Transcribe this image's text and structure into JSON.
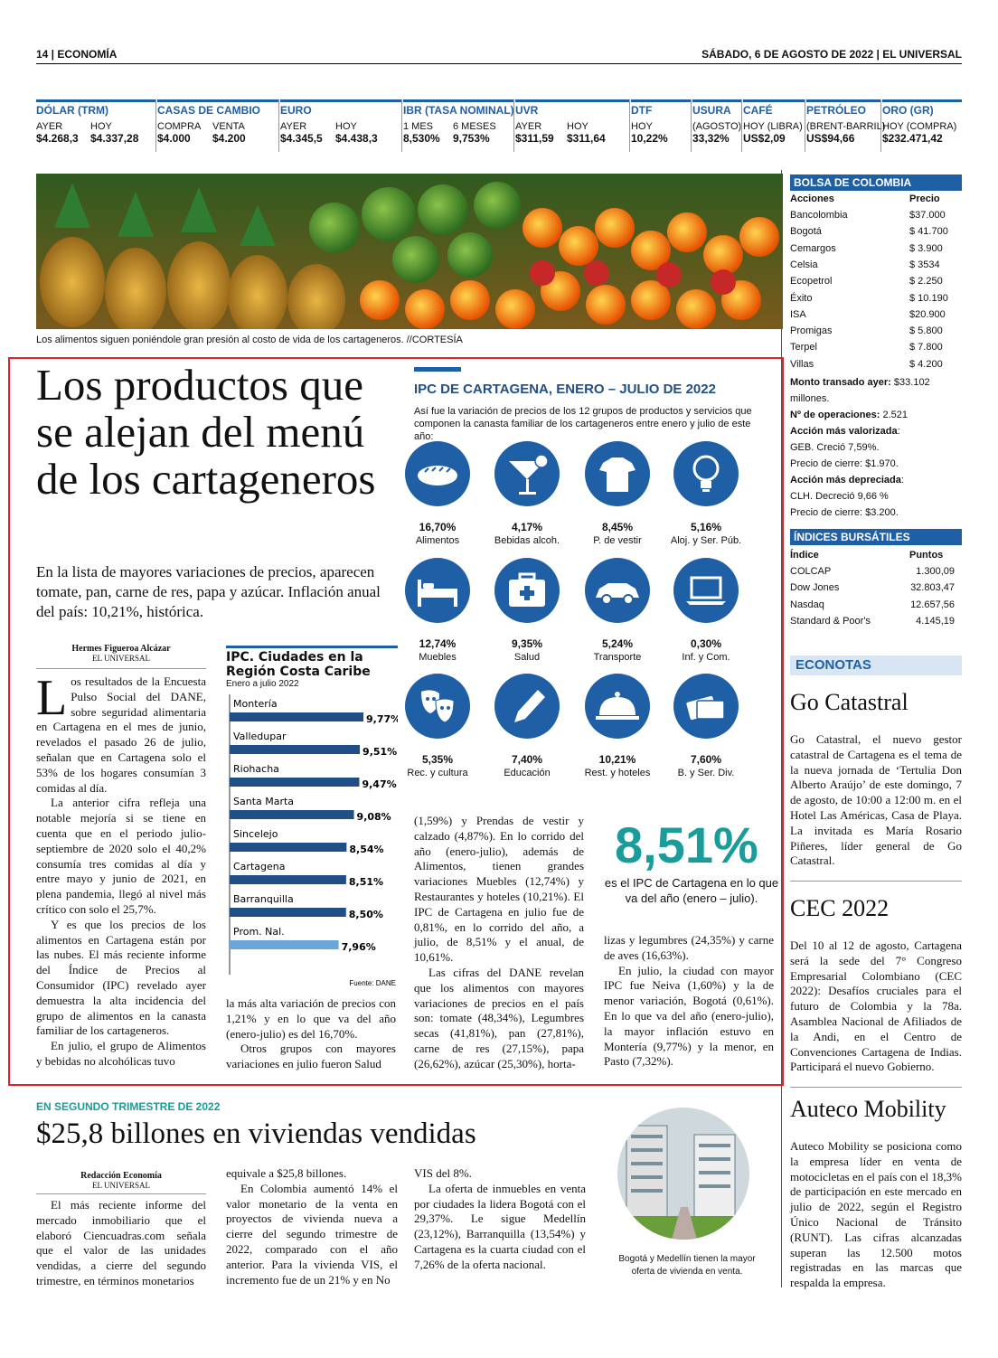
{
  "header": {
    "section": "14 | ECONOMÍA",
    "date": "SÁBADO, 6 DE AGOSTO DE 2022 | EL UNIVERSAL"
  },
  "markets": [
    {
      "title": "DÓLAR (TRM)",
      "subs": [
        "AYER",
        "HOY"
      ],
      "vals": [
        "$4.268,3",
        "$4.337,28"
      ]
    },
    {
      "title": "CASAS DE CAMBIO",
      "subs": [
        "COMPRA",
        "VENTA"
      ],
      "vals": [
        "$4.000",
        "$4.200"
      ]
    },
    {
      "title": "EURO",
      "subs": [
        "AYER",
        "HOY"
      ],
      "vals": [
        "$4.345,5",
        "$4.438,3"
      ]
    },
    {
      "title": "IBR (TASA NOMINAL)",
      "subs": [
        "1 MES",
        "6 MESES"
      ],
      "vals": [
        "8,530%",
        "9,753%"
      ]
    },
    {
      "title": "UVR",
      "subs": [
        "AYER",
        "HOY"
      ],
      "vals": [
        "$311,59",
        "$311,64"
      ]
    },
    {
      "title": "DTF",
      "subs": [
        "HOY"
      ],
      "vals": [
        "10,22%"
      ]
    },
    {
      "title": "USURA",
      "subs": [
        "(AGOSTO)"
      ],
      "vals": [
        "33,32%"
      ]
    },
    {
      "title": "CAFÉ",
      "subs": [
        "HOY (LIBRA)"
      ],
      "vals": [
        "US$2,09"
      ]
    },
    {
      "title": "PETRÓLEO",
      "subs": [
        "(BRENT-BARRIL)"
      ],
      "vals": [
        "US$94,66"
      ]
    },
    {
      "title": "ORO (GR)",
      "subs": [
        "HOY (COMPRA)"
      ],
      "vals": [
        "$232.471,42"
      ]
    }
  ],
  "photo_caption": "Los alimentos siguen poniéndole gran presión al costo de vida de los cartageneros. //CORTESÍA",
  "article": {
    "headline": "Los productos que se alejan del menú de los cartageneros",
    "deck": "En la lista de mayores variaciones de precios, aparecen tomate, pan, carne de res, papa y azúcar. Inflación anual del país: 10,21%, histórica.",
    "author": "Hermes Figueroa Alcázar",
    "outlet": "EL UNIVERSAL",
    "dropcap": "L",
    "col1": [
      "os resultados de la Encuesta Pulso Social del DANE, sobre seguridad alimentaria en Cartagena en el mes de junio, revelados el pasado 26 de julio, señalan que en Cartagena solo el 53% de los hogares consumían 3 comidas al día.",
      "La anterior cifra refleja una notable mejoría si se tiene en cuenta que en el periodo julio-septiembre de 2020 solo el 40,2% consumía tres comidas al día y entre mayo y junio de 2021, en plena pandemia, llegó al nivel más crítico con solo el 25,7%.",
      "Y es que los precios de los alimentos en Cartagena están por las nubes. El más reciente informe del Índice de Precios al Consumidor (IPC) revelado ayer demuestra la alta incidencia del grupo de alimentos en la canasta familiar de los cartageneros.",
      "En julio, el grupo de Alimentos y bebidas no alcohólicas tuvo"
    ],
    "col2": [
      "la más alta variación de precios con 1,21% y en lo que va del año (enero-julio) es del 16,70%.",
      "Otros grupos con mayores variaciones en julio fueron Salud"
    ],
    "col3": [
      "(1,59%) y Prendas de vestir y calzado (4,87%). En lo corrido del año (enero-julio), además de Alimentos, tienen grandes variaciones Muebles (12,74%) y Restaurantes y hoteles (10,21%). El IPC de Cartagena en julio fue de 0,81%, en lo corrido del año, a julio, de 8,51% y el anual, de 10,61%.",
      "Las cifras del DANE revelan que los alimentos con mayores variaciones de precios en el país son: tomate (48,34%), Legumbres secas (41,81%), pan (27,81%), carne de res (27,15%), papa (26,62%), azúcar (25,30%), horta-"
    ],
    "col4": [
      "lizas y legumbres (24,35%) y carne de aves (16,63%).",
      "En julio, la ciudad con mayor IPC fue Neiva (1,60%) y la de menor variación, Bogotá (0,61%). En lo que va del año (enero-julio), la mayor inflación estuvo en Montería (9,77%) y la menor, en Pasto (7,32%)."
    ]
  },
  "chart_data": {
    "type": "bar",
    "title": "IPC. Ciudades en la Región Costa Caribe",
    "subtitle": "Enero a julio 2022",
    "source": "Fuente: DANE",
    "categories": [
      "Montería",
      "Valledupar",
      "Riohacha",
      "Santa Marta",
      "Sincelejo",
      "Cartagena",
      "Barranquilla",
      "Prom. Nal."
    ],
    "values": [
      9.77,
      9.51,
      9.47,
      9.08,
      8.54,
      8.51,
      8.5,
      7.96
    ],
    "labels": [
      "9,77%",
      "9,51%",
      "9,47%",
      "9,08%",
      "8,54%",
      "8,51%",
      "8,50%",
      "7,96%"
    ],
    "colors": [
      "#1f4f86",
      "#1f4f86",
      "#1f4f86",
      "#1f4f86",
      "#1f4f86",
      "#1f4f86",
      "#1f4f86",
      "#6aa6da"
    ]
  },
  "ipc": {
    "title": "IPC DE CARTAGENA, ENERO – JULIO DE 2022",
    "subtitle": "Así fue la variación de precios de los 12 grupos de productos y servicios que componen la canasta familiar de los cartageneros entre enero y julio de este año:",
    "items": [
      {
        "icon": "bread-icon",
        "value": "16,70%",
        "label": "Alimentos"
      },
      {
        "icon": "cocktail-icon",
        "value": "4,17%",
        "label": "Bebidas alcoh."
      },
      {
        "icon": "shirt-icon",
        "value": "8,45%",
        "label": "P. de vestir"
      },
      {
        "icon": "lightbulb-icon",
        "value": "5,16%",
        "label": "Aloj. y Ser. Púb."
      },
      {
        "icon": "bed-icon",
        "value": "12,74%",
        "label": "Muebles"
      },
      {
        "icon": "medkit-icon",
        "value": "9,35%",
        "label": "Salud"
      },
      {
        "icon": "car-icon",
        "value": "5,24%",
        "label": "Transporte"
      },
      {
        "icon": "laptop-icon",
        "value": "0,30%",
        "label": "Inf. y Com."
      },
      {
        "icon": "masks-icon",
        "value": "5,35%",
        "label": "Rec. y cultura"
      },
      {
        "icon": "pencil-icon",
        "value": "7,40%",
        "label": "Educación"
      },
      {
        "icon": "cloche-icon",
        "value": "10,21%",
        "label": "Rest. y hoteles"
      },
      {
        "icon": "cards-icon",
        "value": "7,60%",
        "label": "B. y Ser. Div."
      }
    ],
    "big_value": "8,51%",
    "big_text": "es el IPC de Cartagena en lo que va del año (enero – julio)."
  },
  "bolsa": {
    "title": "BOLSA DE COLOMBIA",
    "h1": "Acciones",
    "h2": "Precio",
    "rows": [
      [
        "Bancolombia",
        "$37.000"
      ],
      [
        "Bogotá",
        "$ 41.700"
      ],
      [
        "Cemargos",
        "$   3.900"
      ],
      [
        "Celsia",
        "$   3534"
      ],
      [
        "Ecopetrol",
        "$   2.250"
      ],
      [
        "Éxito",
        "$   10.190"
      ],
      [
        "ISA",
        "$20.900"
      ],
      [
        "Promigas",
        "$   5.800"
      ],
      [
        "Terpel",
        "$   7.800"
      ],
      [
        "Villas",
        "$   4.200"
      ]
    ],
    "notes": [
      {
        "b": "Monto transado ayer:",
        "t": " $33.102 millones."
      },
      {
        "b": "Nº de operaciones:",
        "t": " 2.521"
      },
      {
        "b": "Acción más valorizada",
        "t": ":"
      },
      {
        "b": "",
        "t": "GEB. Creció 7,59%."
      },
      {
        "b": "",
        "t": "Precio de cierre: $1.970."
      },
      {
        "b": "Acción más depreciada",
        "t": ":"
      },
      {
        "b": "",
        "t": "CLH. Decreció 9,66 %"
      },
      {
        "b": "",
        "t": "Precio de cierre: $3.200."
      }
    ]
  },
  "indices": {
    "title": "ÍNDICES BURSÁTILES",
    "h1": "Índice",
    "h2": "Puntos",
    "rows": [
      [
        "COLCAP",
        "1.300,09"
      ],
      [
        "Dow Jones",
        "32.803,47"
      ],
      [
        "Nasdaq",
        "12.657,56"
      ],
      [
        "Standard & Poor's",
        "4.145,19"
      ]
    ]
  },
  "econotas": {
    "label": "ECONOTAS",
    "items": [
      {
        "title": "Go Catastral",
        "body": "Go Catastral, el nuevo gestor catastral de Cartagena es el tema de la nueva jornada de ‘Tertulia Don Alberto Araújo’ de este domingo, 7 de agosto, de 10:00 a 12:00 m. en el Hotel Las Américas, Casa de Playa. La invitada es María Rosario Piñeres, líder general de Go Catastral."
      },
      {
        "title": "CEC 2022",
        "body": "Del 10 al 12 de agosto, Cartagena será la sede del 7° Congreso Empresarial Colombiano (CEC 2022): Desafíos cruciales para el futuro de Colombia y la 78a. Asamblea Nacional de Afiliados de la Andi, en el Centro de Convenciones Cartagena de Indias. Participará el nuevo Gobierno."
      },
      {
        "title": "Auteco Mobility",
        "body": "Auteco Mobility se posiciona como la empresa líder en venta de motocicletas en el país con el 18,3% de participación en este mercado en julio de 2022, según el Registro Único Nacional de Tránsito (RUNT). Las cifras alcanzadas superan las 12.500 motos registradas en las marcas que respalda la empresa."
      }
    ]
  },
  "article2": {
    "kicker": "EN SEGUNDO TRIMESTRE DE 2022",
    "headline": "$25,8 billones en viviendas vendidas",
    "author": "Redacción Economía",
    "outlet": "EL UNIVERSAL",
    "col1": [
      "El más reciente informe del mercado inmobiliario que el elaboró Ciencuadras.com señala que el valor de las unidades vendidas, a cierre del segundo trimestre, en términos monetarios"
    ],
    "col2": [
      "equivale a $25,8 billones.",
      "En Colombia aumentó 14% el valor monetario de la venta en proyectos de vivienda nueva a cierre del segundo trimestre de 2022, comparado con el año anterior. Para la vivienda VIS, el incremento fue de un 21% y en No"
    ],
    "col3": [
      "VIS del 8%.",
      "La oferta de inmuebles en venta por ciudades la lidera Bogotá con el 29,37%. Le sigue Medellín (23,12%), Barranquilla (13,54%) y Cartagena es la cuarta ciudad con el 7,26% de la oferta nacional."
    ],
    "photo_caption": "Bogotá y Medellín tienen la mayor oferta de vivienda en venta."
  }
}
